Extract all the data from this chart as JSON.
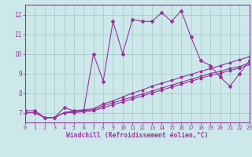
{
  "background_color": "#cce8ea",
  "grid_color": "#aacccc",
  "line_color": "#993399",
  "xlabel": "Windchill (Refroidissement éolien,°C)",
  "xlim": [
    0,
    23
  ],
  "ylim": [
    6.5,
    12.5
  ],
  "xticks": [
    0,
    1,
    2,
    3,
    4,
    5,
    6,
    7,
    8,
    9,
    10,
    11,
    12,
    13,
    14,
    15,
    16,
    17,
    18,
    19,
    20,
    21,
    22,
    23
  ],
  "yticks": [
    7,
    8,
    9,
    10,
    11,
    12
  ],
  "main_line_x": [
    0,
    1,
    2,
    3,
    4,
    5,
    6,
    7,
    8,
    9,
    10,
    11,
    12,
    13,
    14,
    15,
    16,
    17,
    18,
    19,
    20,
    21,
    22,
    23
  ],
  "main_line_y": [
    7.1,
    7.1,
    6.75,
    6.75,
    7.25,
    7.1,
    7.1,
    10.0,
    8.6,
    11.65,
    10.0,
    11.75,
    11.65,
    11.65,
    12.1,
    11.65,
    12.2,
    10.85,
    9.65,
    9.4,
    8.8,
    8.35,
    9.0,
    9.65
  ],
  "line2_x": [
    0,
    1,
    2,
    3,
    4,
    5,
    6,
    7,
    8,
    9,
    10,
    11,
    12,
    13,
    14,
    15,
    16,
    17,
    18,
    19,
    20,
    21,
    22,
    23
  ],
  "line2_y": [
    7.0,
    7.0,
    6.75,
    6.75,
    7.0,
    7.1,
    7.15,
    7.2,
    7.45,
    7.6,
    7.8,
    8.0,
    8.15,
    8.35,
    8.5,
    8.65,
    8.8,
    8.95,
    9.1,
    9.25,
    9.4,
    9.55,
    9.7,
    9.85
  ],
  "line3_x": [
    0,
    1,
    2,
    3,
    4,
    5,
    6,
    7,
    8,
    9,
    10,
    11,
    12,
    13,
    14,
    15,
    16,
    17,
    18,
    19,
    20,
    21,
    22,
    23
  ],
  "line3_y": [
    7.0,
    7.0,
    6.75,
    6.75,
    7.0,
    7.05,
    7.1,
    7.15,
    7.35,
    7.5,
    7.65,
    7.8,
    7.95,
    8.1,
    8.25,
    8.4,
    8.55,
    8.7,
    8.85,
    9.0,
    9.1,
    9.25,
    9.35,
    9.55
  ],
  "line4_x": [
    0,
    1,
    2,
    3,
    4,
    5,
    6,
    7,
    8,
    9,
    10,
    11,
    12,
    13,
    14,
    15,
    16,
    17,
    18,
    19,
    20,
    21,
    22,
    23
  ],
  "line4_y": [
    7.0,
    7.0,
    6.75,
    6.75,
    7.0,
    7.0,
    7.05,
    7.1,
    7.25,
    7.4,
    7.55,
    7.7,
    7.85,
    8.0,
    8.15,
    8.3,
    8.45,
    8.6,
    8.75,
    8.9,
    9.0,
    9.15,
    9.28,
    9.45
  ]
}
